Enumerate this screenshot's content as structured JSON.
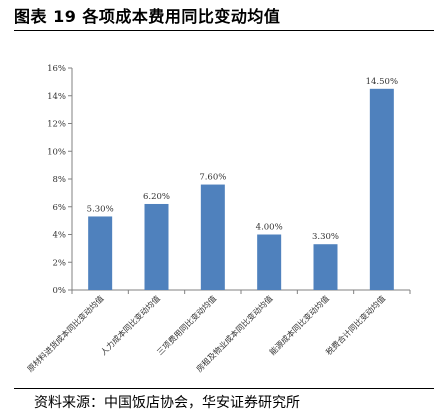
{
  "figure": {
    "title": "图表 19 各项成本费用同比变动均值",
    "source": "资料来源：中国饭店协会，华安证券研究所"
  },
  "colors": {
    "bar": "#4F81BD",
    "axis": "#808080",
    "text": "#333333"
  },
  "chart_data": {
    "type": "bar",
    "title": "",
    "xlabel": "",
    "ylabel": "",
    "categories": [
      "原材料进货成本同比变动均值",
      "人力成本同比变动均值",
      "三项费用同比变动均值",
      "房租及物业成本同比变动均值",
      "能源成本同比变动均值",
      "税费合计同比变动均值"
    ],
    "values": [
      5.3,
      6.2,
      7.6,
      4.0,
      3.3,
      14.5
    ],
    "data_labels": [
      "5.30%",
      "6.20%",
      "7.60%",
      "4.00%",
      "3.30%",
      "14.50%"
    ],
    "yticks": [
      "0%",
      "2%",
      "4%",
      "6%",
      "8%",
      "10%",
      "12%",
      "14%",
      "16%"
    ],
    "ylim": [
      0,
      16
    ],
    "grid": false,
    "legend": "none"
  }
}
